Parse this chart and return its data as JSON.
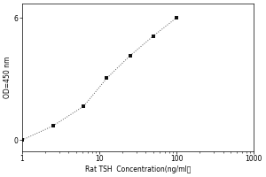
{
  "x_data": [
    1.0,
    2.5,
    6.25,
    12.5,
    25.0,
    50.0,
    100.0
  ],
  "y_data": [
    0.08,
    0.18,
    0.32,
    0.52,
    0.68,
    0.82,
    0.95
  ],
  "x_label": "Rat TSH  Concentration(ng/ml）",
  "y_label": "OD=450 nm",
  "xlim": [
    1,
    1000
  ],
  "ylim": [
    0.0,
    1.05
  ],
  "xticks": [
    1,
    10,
    100,
    1000
  ],
  "xtick_labels": [
    "1",
    "10",
    "100",
    "1000"
  ],
  "ytick_pos": [
    0.08,
    0.95
  ],
  "ytick_labels": [
    "0",
    "6"
  ],
  "marker": "s",
  "marker_color": "#111111",
  "line_style": ":",
  "line_color": "#555555",
  "background_color": "#ffffff",
  "font_size": 5.5,
  "label_font_size": 5.5
}
